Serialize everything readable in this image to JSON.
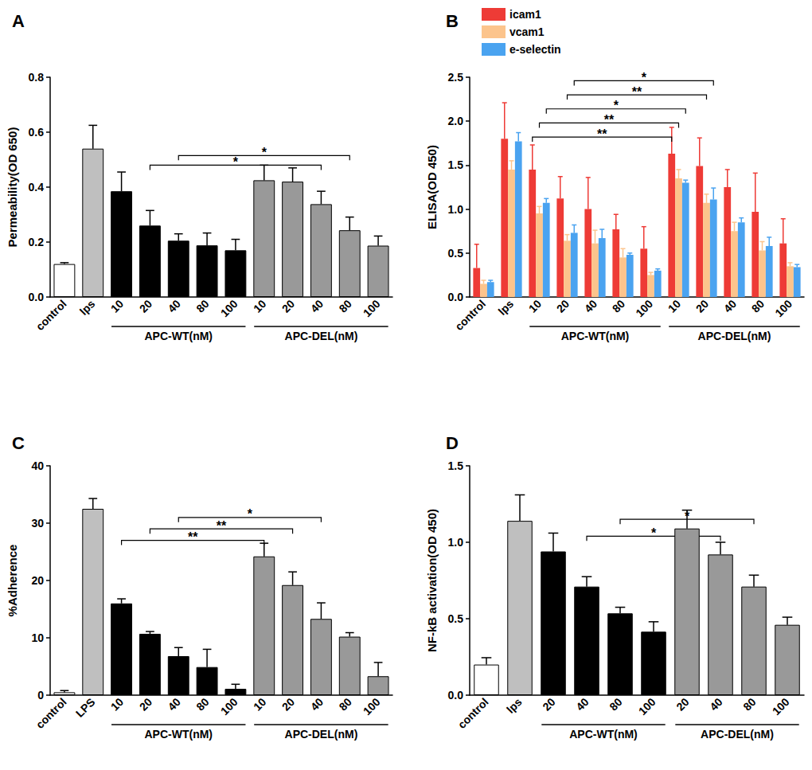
{
  "chart_data": [
    {
      "type": "bar",
      "title": "A",
      "y_label": "Permeability(OD 650)",
      "categories": [
        "control",
        "lps",
        "10",
        "20",
        "40",
        "80",
        "100",
        "10",
        "20",
        "40",
        "80",
        "100"
      ],
      "values": [
        0.12,
        0.54,
        0.385,
        0.26,
        0.205,
        0.188,
        0.17,
        0.425,
        0.42,
        0.338,
        0.243,
        0.187
      ],
      "errors": [
        0.005,
        0.085,
        0.07,
        0.055,
        0.025,
        0.045,
        0.04,
        0.055,
        0.05,
        0.047,
        0.048,
        0.035
      ],
      "colors": [
        "#ffffff",
        "#bfbfbf",
        "#000000",
        "#000000",
        "#000000",
        "#000000",
        "#000000",
        "#999999",
        "#999999",
        "#999999",
        "#999999",
        "#999999"
      ],
      "groups": [
        {
          "label": "APC-WT(nM)",
          "from": 2,
          "to": 6
        },
        {
          "label": "APC-DEL(nM)",
          "from": 7,
          "to": 11
        }
      ],
      "brackets": [
        {
          "from": 3,
          "to": 9,
          "y": 0.48,
          "label": "*"
        },
        {
          "from": 4,
          "to": 10,
          "y": 0.515,
          "label": "*"
        }
      ],
      "ylim": [
        0,
        0.8
      ],
      "yticks": [
        {
          "value": 0,
          "label": "0.0"
        },
        0.2,
        0.4,
        0.6,
        0.8
      ],
      "grid": false
    },
    {
      "type": "bar",
      "title": "B",
      "y_label": "ELISA(OD 450)",
      "categories": [
        "control",
        "lps",
        "10",
        "20",
        "40",
        "80",
        "100",
        "10",
        "20",
        "40",
        "80",
        "100"
      ],
      "series": [
        {
          "name": "icam1",
          "color": "#ee3b36",
          "values": [
            0.33,
            1.8,
            1.45,
            1.12,
            1.0,
            0.77,
            0.55,
            1.63,
            1.49,
            1.25,
            0.97,
            0.61
          ],
          "errors": [
            0.27,
            0.41,
            0.28,
            0.25,
            0.36,
            0.17,
            0.25,
            0.3,
            0.32,
            0.2,
            0.44,
            0.28
          ]
        },
        {
          "name": "vcam1",
          "color": "#fcc48c",
          "values": [
            0.15,
            1.45,
            0.95,
            0.64,
            0.61,
            0.45,
            0.25,
            1.35,
            1.07,
            0.75,
            0.53,
            0.35
          ],
          "errors": [
            0.04,
            0.1,
            0.08,
            0.07,
            0.15,
            0.1,
            0.03,
            0.1,
            0.1,
            0.1,
            0.1,
            0.04
          ]
        },
        {
          "name": "e-selectin",
          "color": "#4aa3f0",
          "values": [
            0.17,
            1.77,
            1.07,
            0.73,
            0.67,
            0.48,
            0.3,
            1.3,
            1.11,
            0.85,
            0.58,
            0.34
          ],
          "errors": [
            0.02,
            0.1,
            0.05,
            0.09,
            0.1,
            0.02,
            0.02,
            0.03,
            0.13,
            0.05,
            0.1,
            0.03
          ]
        }
      ],
      "groups": [
        {
          "label": "APC-WT(nM)",
          "from": 2,
          "to": 6
        },
        {
          "label": "APC-DEL(nM)",
          "from": 7,
          "to": 11
        }
      ],
      "brackets": [
        {
          "series": "icam1",
          "from": 2,
          "to": 7,
          "y": 1.82,
          "label": "**"
        },
        {
          "series": "vcam1",
          "from": 2,
          "to": 7,
          "y": 1.98,
          "label": "**"
        },
        {
          "series": "e-selectin",
          "from": 2,
          "to": 7,
          "y": 2.14,
          "label": "*"
        },
        {
          "series": "vcam1",
          "from": 3,
          "to": 8,
          "y": 2.3,
          "label": "**"
        },
        {
          "series": "e-selectin",
          "from": 3,
          "to": 8,
          "y": 2.46,
          "label": "*"
        }
      ],
      "ylim": [
        0,
        2.5
      ],
      "yticks": [
        {
          "value": 0,
          "label": "0.0"
        },
        0.5,
        {
          "value": 1,
          "label": "1.0"
        },
        1.5,
        {
          "value": 2,
          "label": "2.0"
        },
        2.5
      ],
      "legend": "upper left",
      "grid": false
    },
    {
      "type": "bar",
      "title": "C",
      "y_label": "%Adherence",
      "categories": [
        "control",
        "LPS",
        "10",
        "20",
        "40",
        "80",
        "100",
        "10",
        "20",
        "40",
        "80",
        "100"
      ],
      "values": [
        0.5,
        32.5,
        16.0,
        10.7,
        6.8,
        4.9,
        1.1,
        24.2,
        19.2,
        13.3,
        10.2,
        3.3
      ],
      "errors": [
        0.3,
        1.8,
        0.8,
        0.4,
        1.5,
        3.1,
        0.8,
        2.3,
        2.3,
        2.8,
        0.7,
        2.4
      ],
      "colors": [
        "#ffffff",
        "#bfbfbf",
        "#000000",
        "#000000",
        "#000000",
        "#000000",
        "#000000",
        "#999999",
        "#999999",
        "#999999",
        "#999999",
        "#999999"
      ],
      "groups": [
        {
          "label": "APC-WT(nM)",
          "from": 2,
          "to": 6
        },
        {
          "label": "APC-DEL(nM)",
          "from": 7,
          "to": 11
        }
      ],
      "brackets": [
        {
          "from": 2,
          "to": 7,
          "y": 27,
          "label": "**"
        },
        {
          "from": 3,
          "to": 8,
          "y": 29,
          "label": "**"
        },
        {
          "from": 4,
          "to": 9,
          "y": 31,
          "label": "*"
        }
      ],
      "ylim": [
        0,
        40
      ],
      "yticks": [
        0,
        10,
        20,
        30,
        40
      ],
      "grid": false
    },
    {
      "type": "bar",
      "title": "D",
      "y_label": "NF-kB activation(OD 450)",
      "categories": [
        "control",
        "lps",
        "20",
        "40",
        "80",
        "100",
        "20",
        "40",
        "80",
        "100"
      ],
      "values": [
        0.2,
        1.14,
        0.94,
        0.71,
        0.535,
        0.415,
        1.09,
        0.92,
        0.71,
        0.46
      ],
      "errors": [
        0.045,
        0.17,
        0.12,
        0.065,
        0.04,
        0.065,
        0.12,
        0.08,
        0.075,
        0.05
      ],
      "colors": [
        "#ffffff",
        "#bfbfbf",
        "#000000",
        "#000000",
        "#000000",
        "#000000",
        "#999999",
        "#999999",
        "#999999",
        "#999999"
      ],
      "groups": [
        {
          "label": "APC-WT(nM)",
          "from": 2,
          "to": 5
        },
        {
          "label": "APC-DEL(nM)",
          "from": 6,
          "to": 9
        }
      ],
      "brackets": [
        {
          "from": 3,
          "to": 7,
          "y": 1.04,
          "label": "*"
        },
        {
          "from": 4,
          "to": 8,
          "y": 1.15,
          "label": "*"
        }
      ],
      "ylim": [
        0,
        1.5
      ],
      "yticks": [
        {
          "value": 0,
          "label": "0.0"
        },
        0.5,
        {
          "value": 1,
          "label": "1.0"
        },
        1.5
      ],
      "grid": false
    }
  ]
}
